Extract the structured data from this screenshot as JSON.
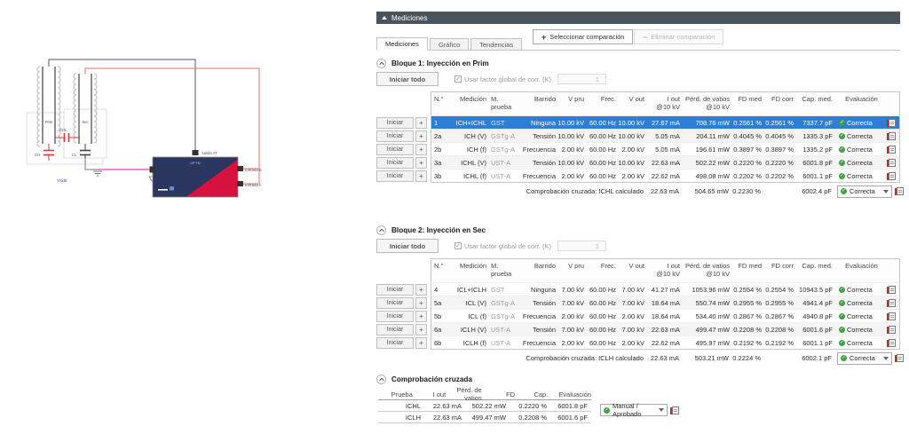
{
  "panel": {
    "title": "Mediciones",
    "toolbar": {
      "select_label": "Seleccionar comparación",
      "select_icon": "+",
      "remove_label": "Eliminar comparación",
      "remove_icon": "−"
    },
    "tabs": [
      {
        "label": "Mediciones",
        "active": true
      },
      {
        "label": "Gráfico",
        "active": false
      },
      {
        "label": "Tendencias",
        "active": false
      }
    ]
  },
  "labels": {
    "iniciar": "Iniciar",
    "plus": "+",
    "iniciar_todo": "Iniciar todo",
    "usar_factor": "Usar factor global de corr. (K)",
    "factor_value": "1",
    "factor_checked": true
  },
  "table_columns": [
    {
      "label": "N.°"
    },
    {
      "label": "Medición"
    },
    {
      "label": "M. prueba"
    },
    {
      "label": "Barrido"
    },
    {
      "label": "V pru"
    },
    {
      "label": "Frec."
    },
    {
      "label": "V out"
    },
    {
      "label": "I out",
      "sub": "@10 kV"
    },
    {
      "label": "Pérd. de vatios",
      "sub": "@10 kV"
    },
    {
      "label": "FD med"
    },
    {
      "label": "FD corr"
    },
    {
      "label": "Cap. med."
    },
    {
      "label": "Evaluación"
    }
  ],
  "blocks": [
    {
      "title": "Bloque 1: Inyección en Prim",
      "rows": [
        {
          "n": "1",
          "medicion": "ICH+ICHL",
          "m_prueba": "GST",
          "barrido": "Ninguna",
          "v_pru": "10.00 kV",
          "frec": "60.00 Hz",
          "v_out": "10.00 kV",
          "i_out": "27.67 mA",
          "perd": "708.76 mW",
          "fd_med": "0.2561 %",
          "fd_corr": "0.2561 %",
          "cap_med": "7337.7 pF",
          "evaluacion": "Correcta",
          "selected": true
        },
        {
          "n": "2a",
          "medicion": "ICH (V)",
          "m_prueba": "GSTg-A",
          "barrido": "Tensión",
          "v_pru": "10.00 kV",
          "frec": "60.00 Hz",
          "v_out": "10.00 kV",
          "i_out": "5.05 mA",
          "perd": "204.11 mW",
          "fd_med": "0.4045 %",
          "fd_corr": "0.4045 %",
          "cap_med": "1335.3 pF",
          "evaluacion": "Correcta",
          "selected": false
        },
        {
          "n": "2b",
          "medicion": "ICH (f)",
          "m_prueba": "GSTg-A",
          "barrido": "Frecuencia",
          "v_pru": "2.00 kV",
          "frec": "60.00 Hz",
          "v_out": "2.00 kV",
          "i_out": "5.05 mA",
          "perd": "196.61 mW",
          "fd_med": "0.3897 %",
          "fd_corr": "0.3897 %",
          "cap_med": "1335.2 pF",
          "evaluacion": "Correcta",
          "selected": false
        },
        {
          "n": "3a",
          "medicion": "ICHL (V)",
          "m_prueba": "UST-A",
          "barrido": "Tensión",
          "v_pru": "10.00 kV",
          "frec": "60.00 Hz",
          "v_out": "10.00 kV",
          "i_out": "22.63 mA",
          "perd": "502.22 mW",
          "fd_med": "0.2220 %",
          "fd_corr": "0.2220 %",
          "cap_med": "6001.8 pF",
          "evaluacion": "Correcta",
          "selected": false
        },
        {
          "n": "3b",
          "medicion": "ICHL (f)",
          "m_prueba": "UST-A",
          "barrido": "Frecuencia",
          "v_pru": "2.00 kV",
          "frec": "60.00 Hz",
          "v_out": "2.00 kV",
          "i_out": "22.62 mA",
          "perd": "498.08 mW",
          "fd_med": "0.2202 %",
          "fd_corr": "0.2202 %",
          "cap_med": "6001.1 pF",
          "evaluacion": "Correcta",
          "selected": false
        }
      ],
      "summary": {
        "label": "Comprobación cruzada: ICHL calculado",
        "i_out": "22.63 mA",
        "perd": "504.65 mW",
        "fd_med": "0.2230 %",
        "cap_med": "6002.4 pF",
        "evaluacion": "Correcta"
      }
    },
    {
      "title": "Bloque 2: Inyección en Sec",
      "rows": [
        {
          "n": "4",
          "medicion": "ICL+ICLH",
          "m_prueba": "GST",
          "barrido": "Ninguna",
          "v_pru": "7.00 kV",
          "frec": "60.00 Hz",
          "v_out": "7.00 kV",
          "i_out": "41.27 mA",
          "perd": "1053.96 mW",
          "fd_med": "0.2554 %",
          "fd_corr": "0.2554 %",
          "cap_med": "10943.5 pF",
          "evaluacion": "Correcta",
          "selected": false
        },
        {
          "n": "5a",
          "medicion": "ICL (V)",
          "m_prueba": "GSTg-A",
          "barrido": "Tensión",
          "v_pru": "7.00 kV",
          "frec": "60.00 Hz",
          "v_out": "7.00 kV",
          "i_out": "18.64 mA",
          "perd": "550.74 mW",
          "fd_med": "0.2955 %",
          "fd_corr": "0.2955 %",
          "cap_med": "4941.4 pF",
          "evaluacion": "Correcta",
          "selected": false
        },
        {
          "n": "5b",
          "medicion": "ICL (f)",
          "m_prueba": "GSTg-A",
          "barrido": "Frecuencia",
          "v_pru": "2.00 kV",
          "frec": "60.00 Hz",
          "v_out": "2.00 kV",
          "i_out": "18.64 mA",
          "perd": "534.40 mW",
          "fd_med": "0.2867 %",
          "fd_corr": "0.2867 %",
          "cap_med": "4940.8 pF",
          "evaluacion": "Correcta",
          "selected": false
        },
        {
          "n": "6a",
          "medicion": "ICLH (V)",
          "m_prueba": "UST-A",
          "barrido": "Tensión",
          "v_pru": "7.00 kV",
          "frec": "60.00 Hz",
          "v_out": "7.00 kV",
          "i_out": "22.63 mA",
          "perd": "499.47 mW",
          "fd_med": "0.2208 %",
          "fd_corr": "0.2208 %",
          "cap_med": "6001.6 pF",
          "evaluacion": "Correcta",
          "selected": false
        },
        {
          "n": "6b",
          "medicion": "ICLH (f)",
          "m_prueba": "UST-A",
          "barrido": "Frecuencia",
          "v_pru": "2.00 kV",
          "frec": "60.00 Hz",
          "v_out": "2.00 kV",
          "i_out": "22.62 mA",
          "perd": "495.97 mW",
          "fd_med": "0.2192 %",
          "fd_corr": "0.2192 %",
          "cap_med": "6001.1 pF",
          "evaluacion": "Correcta",
          "selected": false
        }
      ],
      "summary": {
        "label": "Comprobación cruzada: ICLH calculado",
        "i_out": "22.63 mA",
        "perd": "503.21 mW",
        "fd_med": "0.2224 %",
        "cap_med": "6002.1 pF",
        "evaluacion": "Correcta"
      }
    }
  ],
  "cross_check": {
    "title": "Comprobación cruzada",
    "columns": [
      "Prueba",
      "I out",
      "Pérd. de vatios",
      "FD",
      "Cap.",
      "Evaluación"
    ],
    "rows": [
      {
        "prueba": "ICHL",
        "i_out": "22.63 mA",
        "perd": "502.22 mW",
        "fd": "0.2220 %",
        "cap": "6001.8 pF"
      },
      {
        "prueba": "ICLH",
        "i_out": "22.63 mA",
        "perd": "499.47 mW",
        "fd": "0.2208 %",
        "cap": "6001.6 pF"
      }
    ],
    "evaluation": "Manual / Aprobado"
  },
  "diagram": {
    "prim": "Prim",
    "sec": "Sec",
    "cap_hl": "CHL",
    "cap_h": "CH",
    "cap_l": "CL",
    "vector_group": "YNd5",
    "device_label": "CP TD",
    "salida": "Salida AT",
    "entrada_b": "Entrada B",
    "entrada_a": "Entrada A"
  },
  "colors": {
    "header_bar": "#4a545c",
    "selected_row": "#2d7fd6",
    "status_green": "#43a047",
    "device_navy": "#2a3560",
    "device_red": "#d6123f",
    "wire_red": "#e2756a",
    "wire_magenta": "#e040d0",
    "wire_black": "#555555"
  }
}
